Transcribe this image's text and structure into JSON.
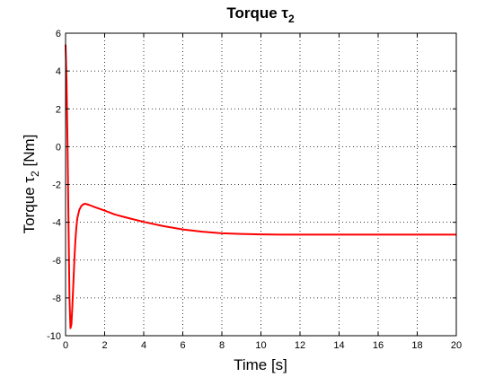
{
  "chart_data": {
    "type": "line",
    "title": {
      "main": "Torque τ",
      "sub": "2"
    },
    "xlabel": "Time [s]",
    "ylabel": {
      "main": "Torque τ",
      "sub": "2",
      "unit": " [Nm]"
    },
    "xlim": [
      0,
      20
    ],
    "ylim": [
      -10,
      6
    ],
    "xticks": [
      0,
      2,
      4,
      6,
      8,
      10,
      12,
      14,
      16,
      18,
      20
    ],
    "yticks": [
      -10,
      -8,
      -6,
      -4,
      -2,
      0,
      2,
      4,
      6
    ],
    "grid": true,
    "grid_style": "dotted",
    "series": [
      {
        "color": "#ff0000",
        "x": [
          0,
          0.05,
          0.1,
          0.15,
          0.2,
          0.25,
          0.3,
          0.35,
          0.4,
          0.45,
          0.5,
          0.55,
          0.6,
          0.7,
          0.8,
          0.9,
          1.0,
          1.2,
          1.5,
          2,
          2.5,
          3,
          3.5,
          4,
          5,
          6,
          7,
          8,
          9,
          10,
          11,
          12,
          13,
          14,
          15,
          16,
          17,
          18,
          19,
          20
        ],
        "y": [
          5.4,
          3.5,
          0.2,
          -4.0,
          -8.0,
          -9.6,
          -9.4,
          -8.4,
          -7.2,
          -6.0,
          -5.0,
          -4.3,
          -3.8,
          -3.35,
          -3.15,
          -3.05,
          -3.02,
          -3.08,
          -3.2,
          -3.38,
          -3.58,
          -3.72,
          -3.85,
          -3.98,
          -4.2,
          -4.38,
          -4.5,
          -4.58,
          -4.62,
          -4.64,
          -4.65,
          -4.65,
          -4.65,
          -4.65,
          -4.65,
          -4.65,
          -4.65,
          -4.65,
          -4.65,
          -4.65
        ]
      }
    ]
  }
}
